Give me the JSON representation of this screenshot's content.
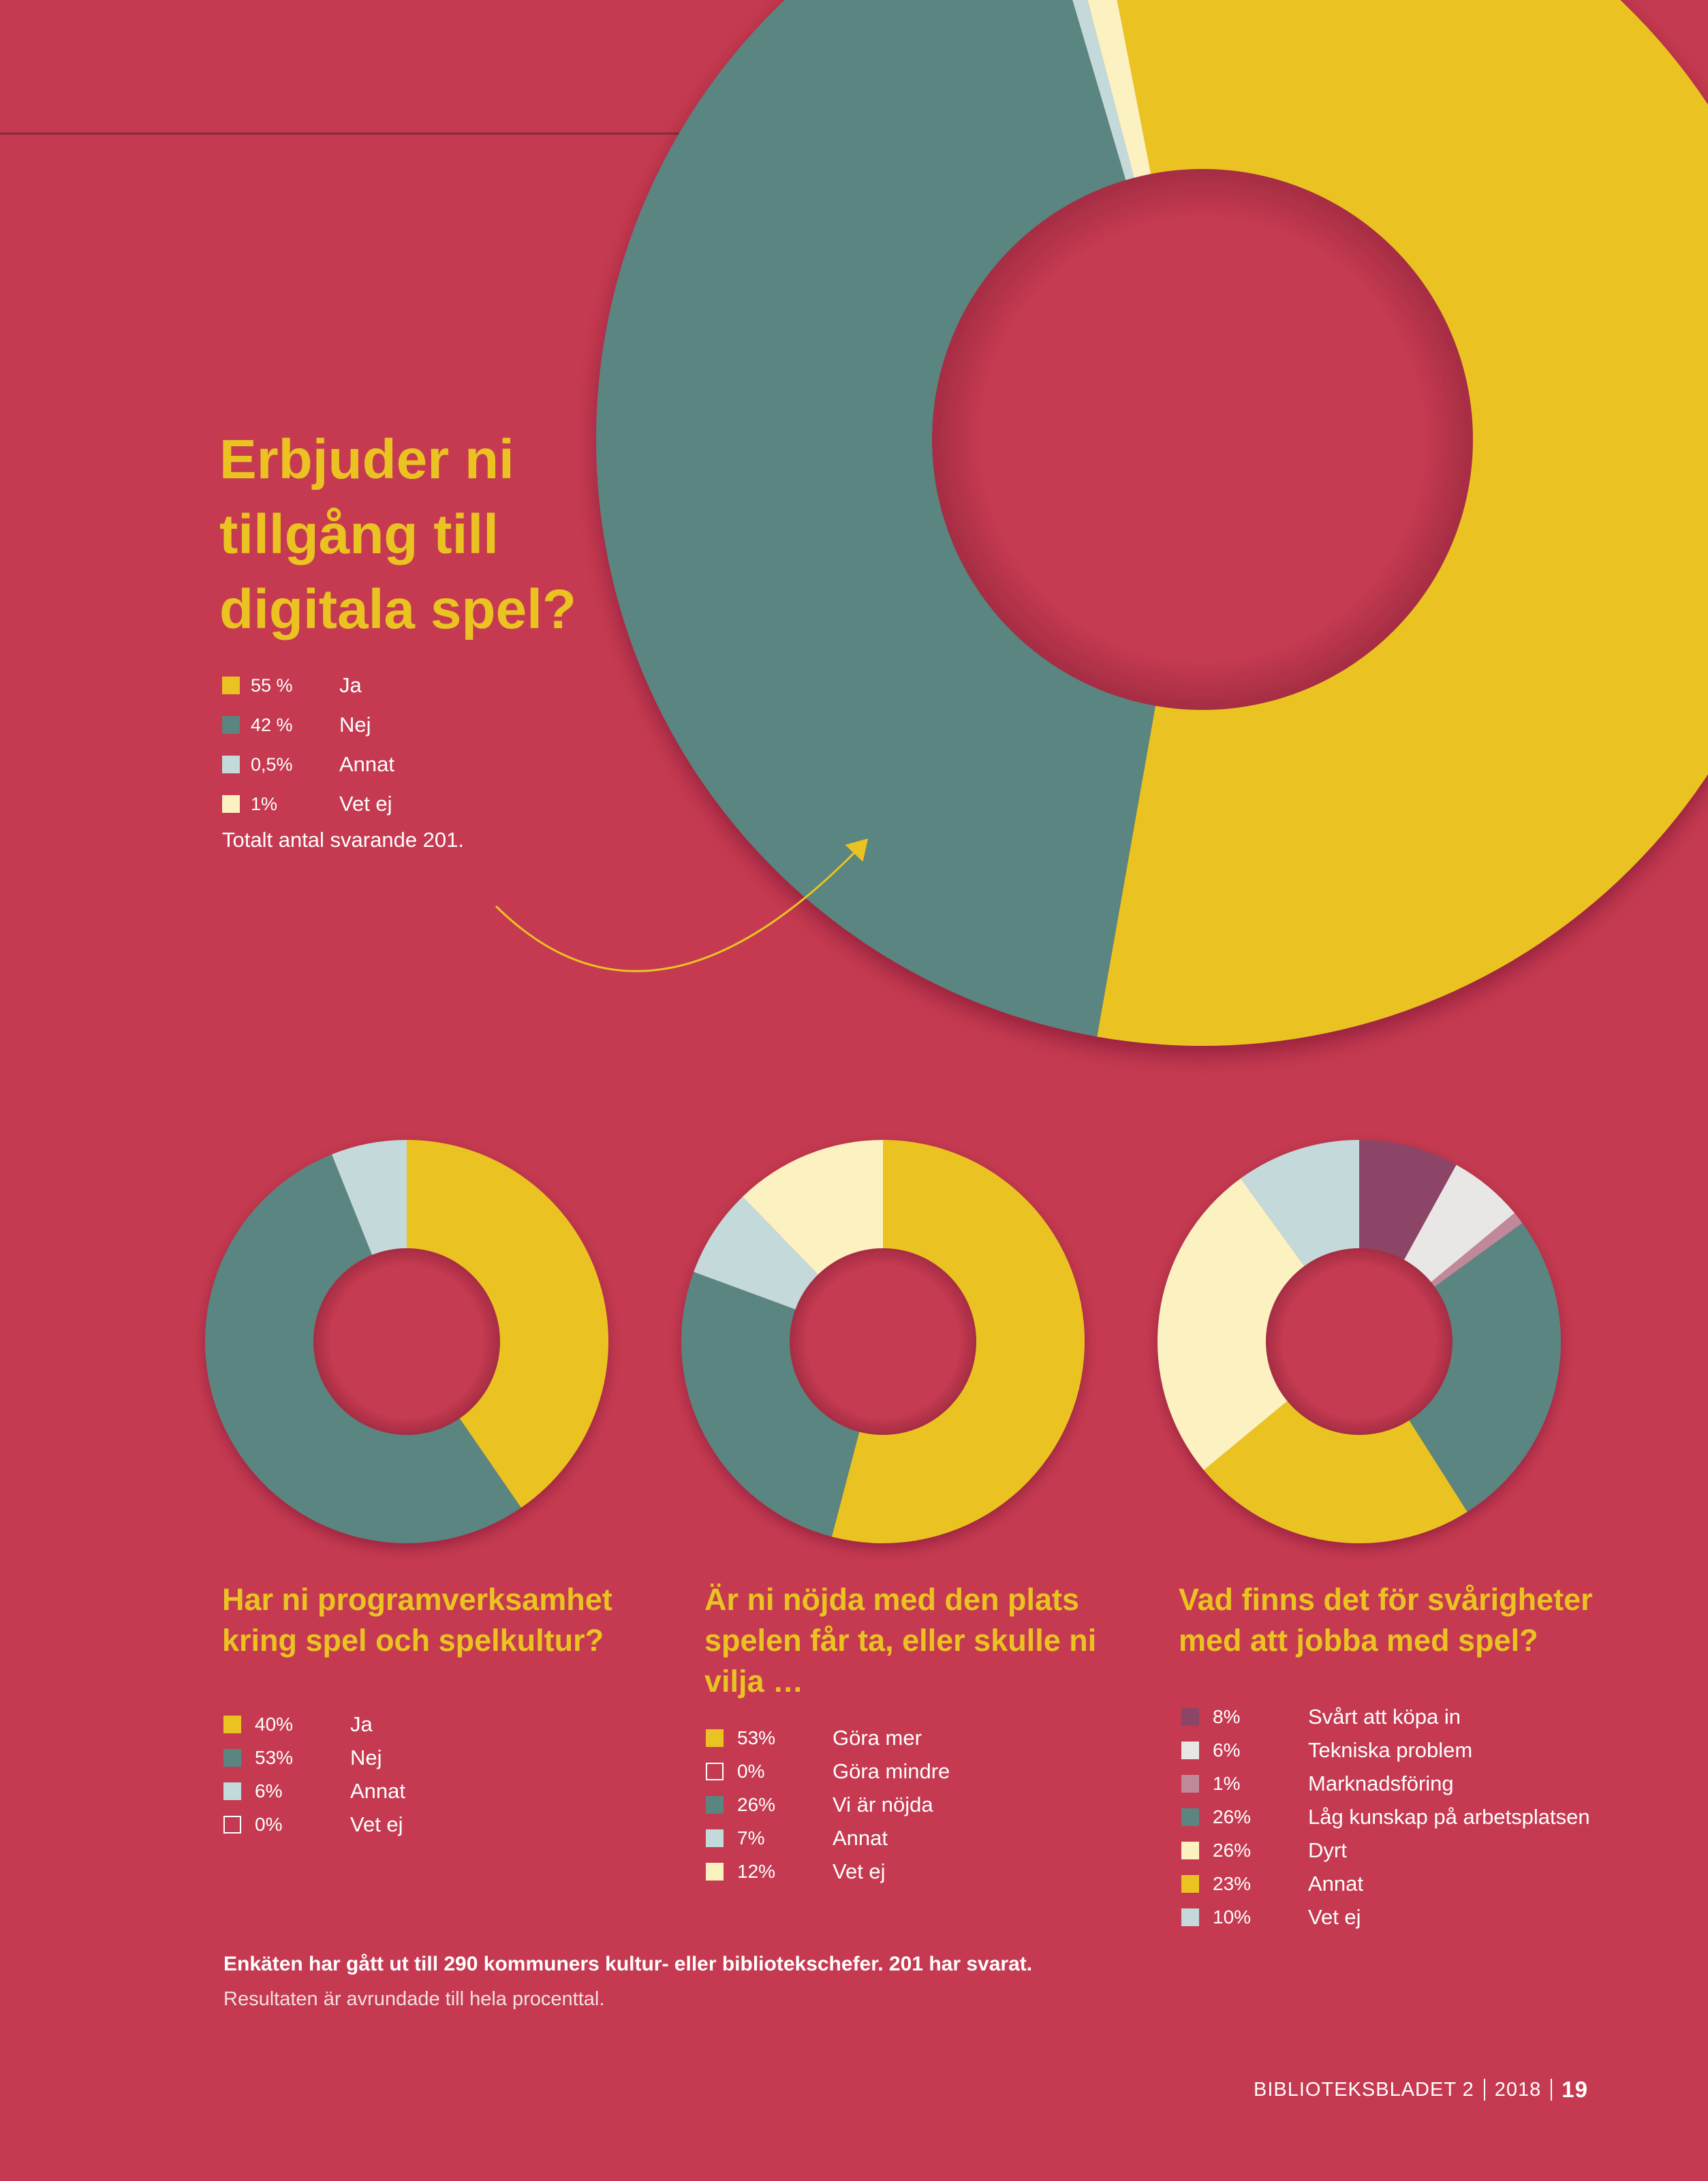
{
  "colors": {
    "background": "#c53a51",
    "yellow": "#eac322",
    "teal": "#5a8580",
    "light_blue": "#c4d9d9",
    "cream": "#fcf1c1",
    "plum": "#8c4566",
    "light_gray": "#e9e6e6",
    "mauve": "#c0899a"
  },
  "main": {
    "question": "Erbjuder ni tillgång till digitala spel?",
    "legend": [
      {
        "pct": "55 %",
        "label": "Ja",
        "color": "#eac322"
      },
      {
        "pct": "42 %",
        "label": "Nej",
        "color": "#5a8580"
      },
      {
        "pct": "0,5%",
        "label": "Annat",
        "color": "#c4d9d9"
      },
      {
        "pct": "1%",
        "label": "Vet ej",
        "color": "#fcf1c1"
      }
    ],
    "total_note": "Totalt antal svarande 201."
  },
  "charts": [
    {
      "question": "Har ni programverksamhet kring spel och spelkultur?",
      "legend": [
        {
          "pct": "40%",
          "label": "Ja",
          "color": "#eac322"
        },
        {
          "pct": "53%",
          "label": "Nej",
          "color": "#5a8580"
        },
        {
          "pct": "6%",
          "label": "Annat",
          "color": "#c4d9d9"
        },
        {
          "pct": "0%",
          "label": "Vet ej",
          "color": "none"
        }
      ]
    },
    {
      "question": "Är ni nöjda med den plats spelen får ta, eller skulle ni vilja …",
      "legend": [
        {
          "pct": "53%",
          "label": "Göra mer",
          "color": "#eac322"
        },
        {
          "pct": "0%",
          "label": "Göra mindre",
          "color": "none"
        },
        {
          "pct": "26%",
          "label": "Vi är nöjda",
          "color": "#5a8580"
        },
        {
          "pct": "7%",
          "label": "Annat",
          "color": "#c4d9d9"
        },
        {
          "pct": "12%",
          "label": "Vet ej",
          "color": "#fcf1c1"
        }
      ]
    },
    {
      "question": "Vad finns det för svårigheter med att jobba med spel?",
      "legend": [
        {
          "pct": "8%",
          "label": "Svårt att köpa in",
          "color": "#8c4566"
        },
        {
          "pct": "6%",
          "label": "Tekniska problem",
          "color": "#e9e6e6"
        },
        {
          "pct": "1%",
          "label": "Marknadsföring",
          "color": "#c0899a"
        },
        {
          "pct": "26%",
          "label": "Låg kunskap på arbetsplatsen",
          "color": "#5a8580"
        },
        {
          "pct": "26%",
          "label": "Dyrt",
          "color": "#fcf1c1"
        },
        {
          "pct": "23%",
          "label": "Annat",
          "color": "#eac322"
        },
        {
          "pct": "10%",
          "label": "Vet ej",
          "color": "#c4d9d9"
        }
      ]
    }
  ],
  "chart_data": [
    {
      "type": "pie",
      "title": "Erbjuder ni tillgång till digitala spel?",
      "categories": [
        "Ja",
        "Nej",
        "Annat",
        "Vet ej"
      ],
      "values": [
        55,
        42,
        0.5,
        1
      ],
      "colors": [
        "#eac322",
        "#5a8580",
        "#c4d9d9",
        "#fcf1c1"
      ],
      "start_angle_deg": -11
    },
    {
      "type": "pie",
      "title": "Har ni programverksamhet kring spel och spelkultur?",
      "categories": [
        "Ja",
        "Nej",
        "Annat",
        "Vet ej"
      ],
      "values": [
        40,
        53,
        6,
        0
      ],
      "colors": [
        "#eac322",
        "#5a8580",
        "#c4d9d9",
        "none"
      ],
      "start_angle_deg": 0
    },
    {
      "type": "pie",
      "title": "Är ni nöjda med den plats spelen får ta, eller skulle ni vilja …",
      "categories": [
        "Göra mer",
        "Göra mindre",
        "Vi är nöjda",
        "Annat",
        "Vet ej"
      ],
      "values": [
        53,
        0,
        26,
        7,
        12
      ],
      "colors": [
        "#eac322",
        "none",
        "#5a8580",
        "#c4d9d9",
        "#fcf1c1"
      ],
      "start_angle_deg": 0
    },
    {
      "type": "pie",
      "title": "Vad finns det för svårigheter med att jobba med spel?",
      "categories": [
        "Svårt att köpa in",
        "Tekniska problem",
        "Marknadsföring",
        "Låg kunskap på arbetsplatsen",
        "Annat",
        "Dyrt",
        "Vet ej"
      ],
      "values": [
        8,
        6,
        1,
        26,
        23,
        26,
        10
      ],
      "colors": [
        "#8c4566",
        "#e9e6e6",
        "#c0899a",
        "#5a8580",
        "#eac322",
        "#fcf1c1",
        "#c4d9d9"
      ],
      "start_angle_deg": 0
    }
  ],
  "footnote": {
    "line1": "Enkäten har gått ut till 290 kommuners kultur- eller bibliotekschefer. 201 har svarat.",
    "line2": "Resultaten är avrundade till hela procenttal."
  },
  "footer": {
    "publication": "BIBLIOTEKSBLADET 2",
    "year": "2018",
    "page": "19"
  }
}
